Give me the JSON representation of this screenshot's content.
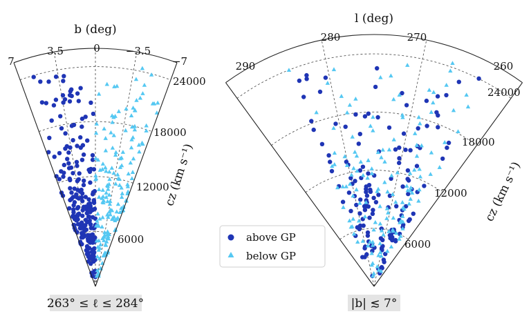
{
  "colors": {
    "above": "#1f35b5",
    "below": "#55c8f2"
  },
  "chart_data": [
    {
      "type": "scatter",
      "projection": "wedge",
      "angle_axis": "b (deg)",
      "angle_ticks": [
        "7",
        "3.5",
        "0",
        "−3.5",
        "−7"
      ],
      "radius_axis": "cz (km s⁻¹)",
      "radius_ticks": [
        "6000",
        "12000",
        "18000",
        "24000"
      ],
      "radius_range": [
        0,
        26000
      ],
      "angle_range": [
        7,
        -7
      ],
      "grid": true,
      "caption": "263° ≤ ℓ ≤ 284°",
      "series": [
        {
          "name": "above GP",
          "marker": "circle",
          "color": "#1f35b5",
          "b_range": [
            0,
            7
          ],
          "density": [
            [
              2000,
              6
            ],
            [
              4000,
              14
            ],
            [
              6000,
              22
            ],
            [
              8000,
              22
            ],
            [
              10000,
              14
            ],
            [
              12000,
              9
            ],
            [
              14000,
              7
            ],
            [
              16000,
              6
            ],
            [
              18000,
              5
            ],
            [
              20000,
              5
            ],
            [
              22000,
              4
            ],
            [
              24000,
              2
            ]
          ]
        },
        {
          "name": "below GP",
          "marker": "triangle",
          "color": "#55c8f2",
          "b_range": [
            -7,
            0
          ],
          "density": [
            [
              2000,
              4
            ],
            [
              4000,
              8
            ],
            [
              6000,
              10
            ],
            [
              8000,
              11
            ],
            [
              10000,
              12
            ],
            [
              12000,
              11
            ],
            [
              14000,
              8
            ],
            [
              16000,
              6
            ],
            [
              18000,
              6
            ],
            [
              20000,
              5
            ],
            [
              22000,
              4
            ],
            [
              24000,
              2
            ]
          ]
        }
      ]
    },
    {
      "type": "scatter",
      "projection": "wedge",
      "angle_axis": "l (deg)",
      "angle_ticks": [
        "290",
        "280",
        "270",
        "260"
      ],
      "radius_axis": "cz (km s⁻¹)",
      "radius_ticks": [
        "6000",
        "12000",
        "18000",
        "24000"
      ],
      "radius_range": [
        0,
        26000
      ],
      "angle_range": [
        290,
        260
      ],
      "grid": true,
      "caption": "|b| ≲ 7°",
      "series": [
        {
          "name": "above GP",
          "marker": "circle",
          "color": "#1f35b5",
          "l_range": [
            263,
            284
          ],
          "density": [
            [
              2000,
              4
            ],
            [
              4000,
              10
            ],
            [
              6000,
              14
            ],
            [
              8000,
              16
            ],
            [
              10000,
              12
            ],
            [
              12000,
              9
            ],
            [
              14000,
              7
            ],
            [
              16000,
              6
            ],
            [
              18000,
              6
            ],
            [
              20000,
              5
            ],
            [
              22000,
              4
            ],
            [
              24000,
              2
            ]
          ]
        },
        {
          "name": "below GP",
          "marker": "triangle",
          "color": "#55c8f2",
          "l_range": [
            263,
            284
          ],
          "density": [
            [
              2000,
              4
            ],
            [
              4000,
              8
            ],
            [
              6000,
              10
            ],
            [
              8000,
              11
            ],
            [
              10000,
              12
            ],
            [
              12000,
              11
            ],
            [
              14000,
              8
            ],
            [
              16000,
              6
            ],
            [
              18000,
              6
            ],
            [
              20000,
              5
            ],
            [
              22000,
              4
            ],
            [
              24000,
              2
            ]
          ]
        }
      ]
    }
  ],
  "legend": {
    "position": "center",
    "items": [
      {
        "label": "above GP",
        "marker": "circle",
        "color": "#1f35b5"
      },
      {
        "label": "below GP",
        "marker": "triangle",
        "color": "#55c8f2"
      }
    ]
  }
}
